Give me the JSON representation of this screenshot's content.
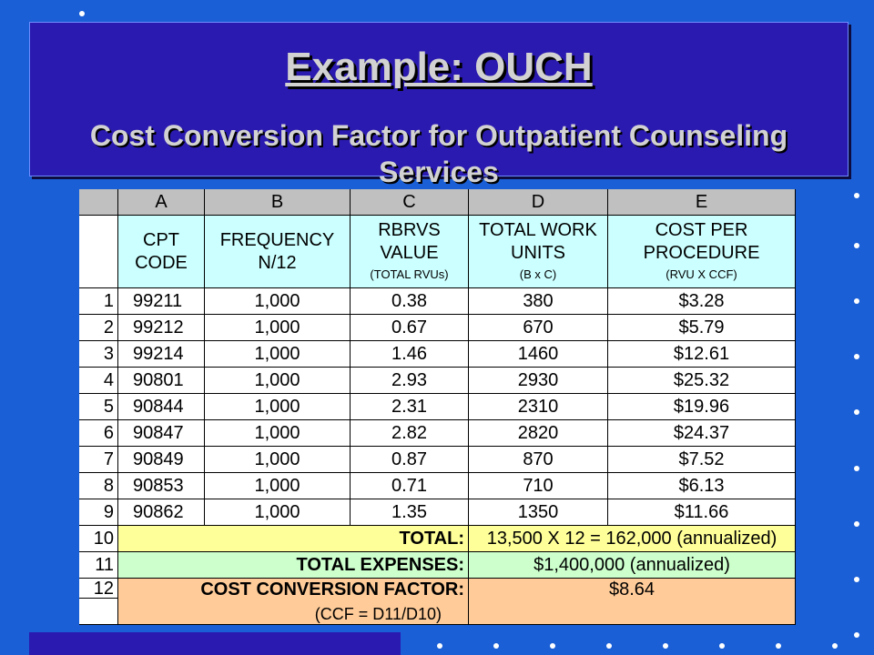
{
  "slide": {
    "title": "Example:  OUCH",
    "subtitle": "Cost Conversion Factor for Outpatient Counseling Services"
  },
  "table": {
    "columns": [
      "A",
      "B",
      "C",
      "D",
      "E"
    ],
    "headers": {
      "a": "CPT CODE",
      "b": "FREQUENCY N/12",
      "c": "RBRVS VALUE",
      "c_note": "(TOTAL RVUs)",
      "d": "TOTAL WORK UNITS",
      "d_note": "(B x C)",
      "e": "COST PER PROCEDURE",
      "e_note": "(RVU X CCF)"
    },
    "rows": [
      {
        "num": "1",
        "code": "99211",
        "freq": "1,000",
        "rvu": "0.38",
        "units": "380",
        "cost": "$3.28"
      },
      {
        "num": "2",
        "code": "99212",
        "freq": "1,000",
        "rvu": "0.67",
        "units": "670",
        "cost": "$5.79"
      },
      {
        "num": "3",
        "code": "99214",
        "freq": "1,000",
        "rvu": "1.46",
        "units": "1460",
        "cost": "$12.61"
      },
      {
        "num": "4",
        "code": "90801",
        "freq": "1,000",
        "rvu": "2.93",
        "units": "2930",
        "cost": "$25.32"
      },
      {
        "num": "5",
        "code": "90844",
        "freq": "1,000",
        "rvu": "2.31",
        "units": "2310",
        "cost": "$19.96"
      },
      {
        "num": "6",
        "code": "90847",
        "freq": "1,000",
        "rvu": "2.82",
        "units": "2820",
        "cost": "$24.37"
      },
      {
        "num": "7",
        "code": "90849",
        "freq": "1,000",
        "rvu": "0.87",
        "units": "870",
        "cost": "$7.52"
      },
      {
        "num": "8",
        "code": "90853",
        "freq": "1,000",
        "rvu": "0.71",
        "units": "710",
        "cost": "$6.13"
      },
      {
        "num": "9",
        "code": "90862",
        "freq": "1,000",
        "rvu": "1.35",
        "units": "1350",
        "cost": "$11.66"
      }
    ],
    "summary": {
      "total_num": "10",
      "total_label": "TOTAL:",
      "total_value": "13,500 X 12 = 162,000 (annualized)",
      "expenses_num": "11",
      "expenses_label": "TOTAL EXPENSES:",
      "expenses_value": "$1,400,000 (annualized)",
      "ccf_num": "12",
      "ccf_label": "COST CONVERSION FACTOR:",
      "ccf_value": "$8.64",
      "ccf_formula": "(CCF = D11/D10)"
    }
  },
  "colors": {
    "background": "#1a5fd6",
    "title_box": "#2a1ab0",
    "header_fill": "#ccffff",
    "total_fill": "#ffff99",
    "expenses_fill": "#ccffcc",
    "ccf_fill": "#ffcc99"
  }
}
